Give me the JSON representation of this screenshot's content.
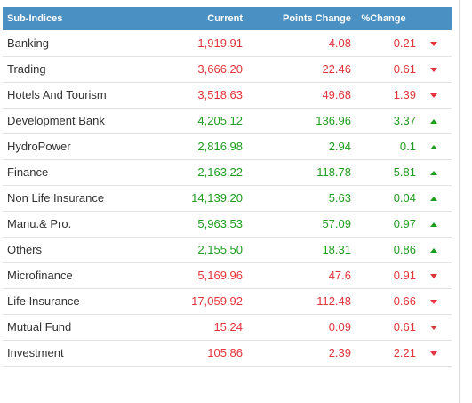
{
  "header": {
    "name": "Sub-Indices",
    "current": "Current",
    "points_change": "Points Change",
    "pct_change": "%Change"
  },
  "colors": {
    "up": "#1f9d1f",
    "down": "#e0353a",
    "header_bg": "#4a90c2"
  },
  "rows": [
    {
      "name": "Banking",
      "current": "1,919.91",
      "points": "4.08",
      "pct": "0.21",
      "dir": "down"
    },
    {
      "name": "Trading",
      "current": "3,666.20",
      "points": "22.46",
      "pct": "0.61",
      "dir": "down"
    },
    {
      "name": "Hotels And Tourism",
      "current": "3,518.63",
      "points": "49.68",
      "pct": "1.39",
      "dir": "down"
    },
    {
      "name": "Development Bank",
      "current": "4,205.12",
      "points": "136.96",
      "pct": "3.37",
      "dir": "up"
    },
    {
      "name": "HydroPower",
      "current": "2,816.98",
      "points": "2.94",
      "pct": "0.1",
      "dir": "up"
    },
    {
      "name": "Finance",
      "current": "2,163.22",
      "points": "118.78",
      "pct": "5.81",
      "dir": "up"
    },
    {
      "name": "Non Life Insurance",
      "current": "14,139.20",
      "points": "5.63",
      "pct": "0.04",
      "dir": "up"
    },
    {
      "name": "Manu.& Pro.",
      "current": "5,963.53",
      "points": "57.09",
      "pct": "0.97",
      "dir": "up"
    },
    {
      "name": "Others",
      "current": "2,155.50",
      "points": "18.31",
      "pct": "0.86",
      "dir": "up"
    },
    {
      "name": "Microfinance",
      "current": "5,169.96",
      "points": "47.6",
      "pct": "0.91",
      "dir": "down"
    },
    {
      "name": "Life Insurance",
      "current": "17,059.92",
      "points": "112.48",
      "pct": "0.66",
      "dir": "down"
    },
    {
      "name": "Mutual Fund",
      "current": "15.24",
      "points": "0.09",
      "pct": "0.61",
      "dir": "down"
    },
    {
      "name": "Investment",
      "current": "105.86",
      "points": "2.39",
      "pct": "2.21",
      "dir": "down"
    }
  ]
}
